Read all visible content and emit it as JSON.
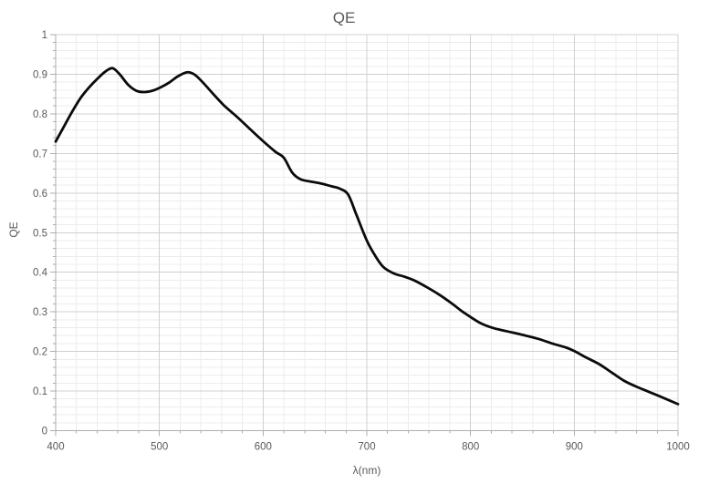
{
  "chart_data": {
    "type": "line",
    "title": "QE",
    "xlabel": "λ(nm)",
    "ylabel": "QE",
    "xlim": [
      400,
      1000
    ],
    "ylim": [
      0,
      1
    ],
    "x_major_step": 100,
    "x_minor_step": 20,
    "y_major_step": 0.1,
    "y_minor_step": 0.02,
    "x_tick_labels": [
      "400",
      "500",
      "600",
      "700",
      "800",
      "900",
      "1000"
    ],
    "y_tick_labels": [
      "0",
      "0.1",
      "0.2",
      "0.3",
      "0.4",
      "0.5",
      "0.6",
      "0.7",
      "0.8",
      "0.9",
      "1"
    ],
    "grid": {
      "major": true,
      "minor": true
    },
    "legend_position": "none",
    "series": [
      {
        "name": "QE",
        "color": "#0b0b0b",
        "points": [
          [
            400,
            0.73
          ],
          [
            408,
            0.768
          ],
          [
            416,
            0.806
          ],
          [
            424,
            0.84
          ],
          [
            432,
            0.866
          ],
          [
            440,
            0.888
          ],
          [
            448,
            0.907
          ],
          [
            455,
            0.915
          ],
          [
            462,
            0.899
          ],
          [
            470,
            0.873
          ],
          [
            478,
            0.858
          ],
          [
            486,
            0.855
          ],
          [
            494,
            0.859
          ],
          [
            502,
            0.868
          ],
          [
            510,
            0.88
          ],
          [
            518,
            0.895
          ],
          [
            527,
            0.905
          ],
          [
            534,
            0.899
          ],
          [
            542,
            0.879
          ],
          [
            552,
            0.85
          ],
          [
            562,
            0.822
          ],
          [
            575,
            0.792
          ],
          [
            588,
            0.76
          ],
          [
            600,
            0.731
          ],
          [
            612,
            0.704
          ],
          [
            620,
            0.689
          ],
          [
            628,
            0.652
          ],
          [
            636,
            0.635
          ],
          [
            646,
            0.629
          ],
          [
            656,
            0.624
          ],
          [
            666,
            0.617
          ],
          [
            674,
            0.611
          ],
          [
            682,
            0.596
          ],
          [
            690,
            0.545
          ],
          [
            700,
            0.48
          ],
          [
            708,
            0.442
          ],
          [
            716,
            0.413
          ],
          [
            726,
            0.397
          ],
          [
            736,
            0.389
          ],
          [
            746,
            0.379
          ],
          [
            758,
            0.362
          ],
          [
            770,
            0.343
          ],
          [
            782,
            0.321
          ],
          [
            792,
            0.301
          ],
          [
            800,
            0.287
          ],
          [
            810,
            0.271
          ],
          [
            822,
            0.259
          ],
          [
            835,
            0.251
          ],
          [
            850,
            0.242
          ],
          [
            865,
            0.232
          ],
          [
            880,
            0.219
          ],
          [
            892,
            0.21
          ],
          [
            900,
            0.201
          ],
          [
            912,
            0.184
          ],
          [
            924,
            0.168
          ],
          [
            936,
            0.147
          ],
          [
            948,
            0.126
          ],
          [
            960,
            0.111
          ],
          [
            972,
            0.098
          ],
          [
            984,
            0.085
          ],
          [
            1000,
            0.067
          ]
        ]
      }
    ]
  },
  "style": {
    "background": "#ffffff",
    "text_color": "#595959",
    "axis_color": "#aeaeae",
    "tick_color": "#aeaeae",
    "major_grid_color": "#d0d0d0",
    "minor_grid_color": "#ececec",
    "line_width": 2.8
  }
}
